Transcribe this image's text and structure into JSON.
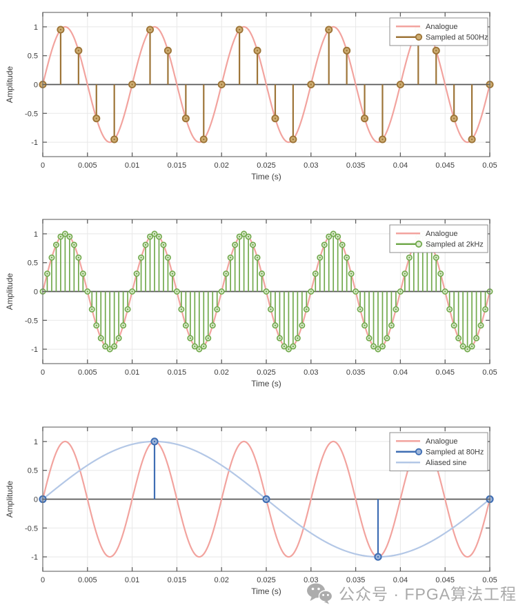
{
  "page": {
    "background": "#ffffff"
  },
  "watermark": {
    "text": "公众号 · FPGA算法工程师",
    "icon": "wechat-icon",
    "color": "#a9a9a9"
  },
  "chart_data": [
    {
      "type": "line",
      "title": "",
      "xlabel": "Time (s)",
      "ylabel": "Amplitude",
      "xlim": [
        0,
        0.05
      ],
      "ylim": [
        -1.25,
        1.25
      ],
      "xticks": [
        0,
        0.005,
        0.01,
        0.015,
        0.02,
        0.025,
        0.03,
        0.035,
        0.04,
        0.045,
        0.05
      ],
      "xtick_labels": [
        "0",
        "0.005",
        "0.01",
        "0.015",
        "0.02",
        "0.025",
        "0.03",
        "0.035",
        "0.04",
        "0.045",
        "0.05"
      ],
      "yticks": [
        -1,
        -0.5,
        0,
        0.5,
        1
      ],
      "ytick_labels": [
        "-1",
        "-0.5",
        "0",
        "0.5",
        "1"
      ],
      "grid": true,
      "legend_position": "top-right",
      "series": [
        {
          "name": "Analogue",
          "kind": "line",
          "color": "#f2a39e",
          "signal": "sine",
          "frequency_hz": 100,
          "amplitude": 1,
          "phase": 0
        },
        {
          "name": "Sampled at 500Hz",
          "kind": "stem",
          "color": "#9d7437",
          "marker_fill": "#cdad72",
          "sample_rate_hz": 500,
          "x": [
            0,
            0.002,
            0.004,
            0.006,
            0.008,
            0.01,
            0.012,
            0.014,
            0.016,
            0.018,
            0.02,
            0.022,
            0.024,
            0.026,
            0.028,
            0.03,
            0.032,
            0.034,
            0.036,
            0.038,
            0.04,
            0.042,
            0.044,
            0.046,
            0.048,
            0.05
          ],
          "y": [
            0,
            0.951,
            0.588,
            -0.588,
            -0.951,
            0,
            0.951,
            0.588,
            -0.588,
            -0.951,
            0,
            0.951,
            0.588,
            -0.588,
            -0.951,
            0,
            0.951,
            0.588,
            -0.588,
            -0.951,
            0,
            0.951,
            0.588,
            -0.588,
            -0.951,
            0
          ]
        }
      ]
    },
    {
      "type": "line",
      "title": "",
      "xlabel": "Time (s)",
      "ylabel": "Amplitude",
      "xlim": [
        0,
        0.05
      ],
      "ylim": [
        -1.25,
        1.25
      ],
      "xticks": [
        0,
        0.005,
        0.01,
        0.015,
        0.02,
        0.025,
        0.03,
        0.035,
        0.04,
        0.045,
        0.05
      ],
      "xtick_labels": [
        "0",
        "0.005",
        "0.01",
        "0.015",
        "0.02",
        "0.025",
        "0.03",
        "0.035",
        "0.04",
        "0.045",
        "0.05"
      ],
      "yticks": [
        -1,
        -0.5,
        0,
        0.5,
        1
      ],
      "ytick_labels": [
        "-1",
        "-0.5",
        "0",
        "0.5",
        "1"
      ],
      "grid": true,
      "legend_position": "top-right",
      "series": [
        {
          "name": "Analogue",
          "kind": "line",
          "color": "#f2a39e",
          "signal": "sine",
          "frequency_hz": 100,
          "amplitude": 1,
          "phase": 0
        },
        {
          "name": "Sampled at 2kHz",
          "kind": "stem",
          "color": "#71a94c",
          "marker_fill": "#ddead0",
          "sample_rate_hz": 2000,
          "frequency_hz": 100,
          "amplitude": 1,
          "n_points": 101
        }
      ]
    },
    {
      "type": "line",
      "title": "",
      "xlabel": "Time (s)",
      "ylabel": "Amplitude",
      "xlim": [
        0,
        0.05
      ],
      "ylim": [
        -1.25,
        1.25
      ],
      "xticks": [
        0,
        0.005,
        0.01,
        0.015,
        0.02,
        0.025,
        0.03,
        0.035,
        0.04,
        0.045,
        0.05
      ],
      "xtick_labels": [
        "0",
        "0.005",
        "0.01",
        "0.015",
        "0.02",
        "0.025",
        "0.03",
        "0.035",
        "0.04",
        "0.045",
        "0.05"
      ],
      "yticks": [
        -1,
        -0.5,
        0,
        0.5,
        1
      ],
      "ytick_labels": [
        "-1",
        "-0.5",
        "0",
        "0.5",
        "1"
      ],
      "grid": true,
      "legend_position": "top-right",
      "series": [
        {
          "name": "Analogue",
          "kind": "line",
          "color": "#f2a39e",
          "signal": "sine",
          "frequency_hz": 100,
          "amplitude": 1,
          "phase": 0
        },
        {
          "name": "Sampled at 80Hz",
          "kind": "stem",
          "color": "#3e6db3",
          "marker_fill": "#9fb6da",
          "sample_rate_hz": 80,
          "x": [
            0,
            0.0125,
            0.025,
            0.0375,
            0.05
          ],
          "y": [
            0,
            1,
            0,
            -1,
            0
          ]
        },
        {
          "name": "Aliased sine",
          "kind": "line",
          "color": "#b3c7e6",
          "signal": "sine",
          "frequency_hz": 20,
          "amplitude": 1,
          "phase": 0
        }
      ]
    }
  ]
}
